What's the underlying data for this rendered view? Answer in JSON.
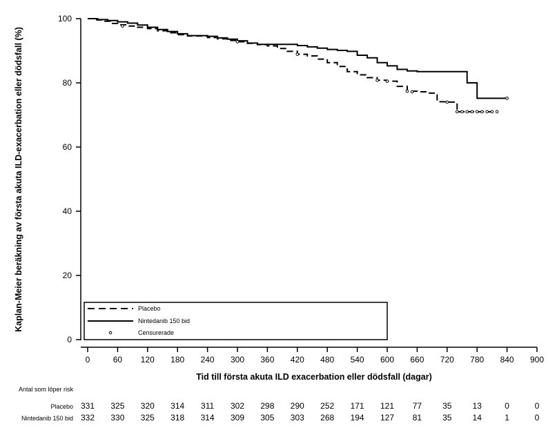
{
  "chart_data": {
    "type": "line",
    "xlabel": "Tid till första akuta ILD exacerbation eller dödsfall (dagar)",
    "ylabel": "Kaplan-Meier beräkning av första akuta ILD-exacerbation eller dödsfall (%)",
    "xlim": [
      0,
      900
    ],
    "ylim": [
      0,
      100
    ],
    "xticks": [
      0,
      60,
      120,
      180,
      240,
      300,
      360,
      420,
      480,
      540,
      600,
      660,
      720,
      780,
      840,
      900
    ],
    "yticks": [
      0,
      20,
      40,
      60,
      80,
      100
    ],
    "grid": false,
    "legend_position": "bottom-left",
    "series": [
      {
        "name": "Placebo",
        "style": "dashed",
        "color": "#000000",
        "x": [
          0,
          15,
          30,
          45,
          60,
          80,
          100,
          120,
          140,
          160,
          180,
          200,
          220,
          240,
          260,
          280,
          300,
          320,
          340,
          360,
          380,
          400,
          420,
          440,
          460,
          480,
          500,
          520,
          540,
          560,
          580,
          600,
          620,
          640,
          660,
          680,
          700,
          720,
          740,
          760,
          780,
          800,
          820
        ],
        "values": [
          100,
          99.6,
          99.2,
          98.5,
          98.1,
          97.7,
          97.3,
          96.9,
          96.2,
          95.6,
          95.0,
          94.6,
          94.6,
          94.1,
          93.7,
          93.2,
          92.8,
          92.3,
          91.9,
          91.5,
          90.7,
          89.8,
          88.9,
          88.4,
          87.4,
          86.3,
          85.1,
          83.5,
          82.5,
          81.6,
          80.8,
          80.5,
          78.9,
          77.4,
          77.2,
          76.8,
          74.1,
          74.0,
          71.0,
          71.0,
          71.0,
          71.0,
          71.0
        ]
      },
      {
        "name": "Nintedanib 150 bid",
        "style": "solid",
        "color": "#000000",
        "x": [
          0,
          20,
          40,
          60,
          80,
          100,
          120,
          140,
          160,
          180,
          200,
          220,
          240,
          260,
          280,
          300,
          320,
          340,
          360,
          380,
          400,
          420,
          440,
          460,
          480,
          500,
          520,
          540,
          560,
          580,
          600,
          620,
          640,
          660,
          680,
          700,
          720,
          740,
          760,
          780,
          800,
          820,
          840
        ],
        "values": [
          100,
          99.7,
          99.4,
          99.0,
          98.6,
          98.0,
          97.3,
          96.6,
          96.0,
          95.3,
          94.7,
          94.7,
          94.5,
          94.0,
          93.6,
          93.1,
          92.4,
          92.0,
          92.0,
          92.0,
          92.0,
          91.6,
          91.2,
          90.8,
          90.4,
          90.1,
          89.8,
          88.6,
          87.8,
          86.3,
          85.3,
          84.2,
          83.7,
          83.5,
          83.5,
          83.5,
          83.5,
          83.5,
          80.0,
          75.2,
          75.2,
          75.2,
          75.2
        ]
      }
    ],
    "censored_marker_label": "Censurerade",
    "censored": [
      {
        "series": "Placebo",
        "x": [
          70,
          300,
          420,
          580,
          600,
          640,
          650,
          720,
          740,
          750,
          760,
          770,
          780,
          790,
          800,
          810,
          820
        ],
        "values": [
          97.7,
          92.8,
          88.9,
          80.8,
          80.5,
          77.4,
          77.2,
          74.0,
          71.0,
          71.0,
          71.0,
          71.0,
          71.0,
          71.0,
          71.0,
          71.0,
          71.0
        ]
      },
      {
        "series": "Nintedanib 150 bid",
        "x": [
          840
        ],
        "values": [
          75.2
        ]
      }
    ]
  },
  "risk_table": {
    "title": "Antal som löper risk",
    "rows": [
      {
        "label": "Placebo",
        "values": [
          "331",
          "325",
          "320",
          "314",
          "311",
          "302",
          "298",
          "290",
          "252",
          "171",
          "121",
          "77",
          "35",
          "13",
          "0",
          "0"
        ]
      },
      {
        "label": "Nintedanib 150 bid",
        "values": [
          "332",
          "330",
          "325",
          "318",
          "314",
          "309",
          "305",
          "303",
          "268",
          "194",
          "127",
          "81",
          "35",
          "14",
          "1",
          "0"
        ]
      }
    ]
  }
}
